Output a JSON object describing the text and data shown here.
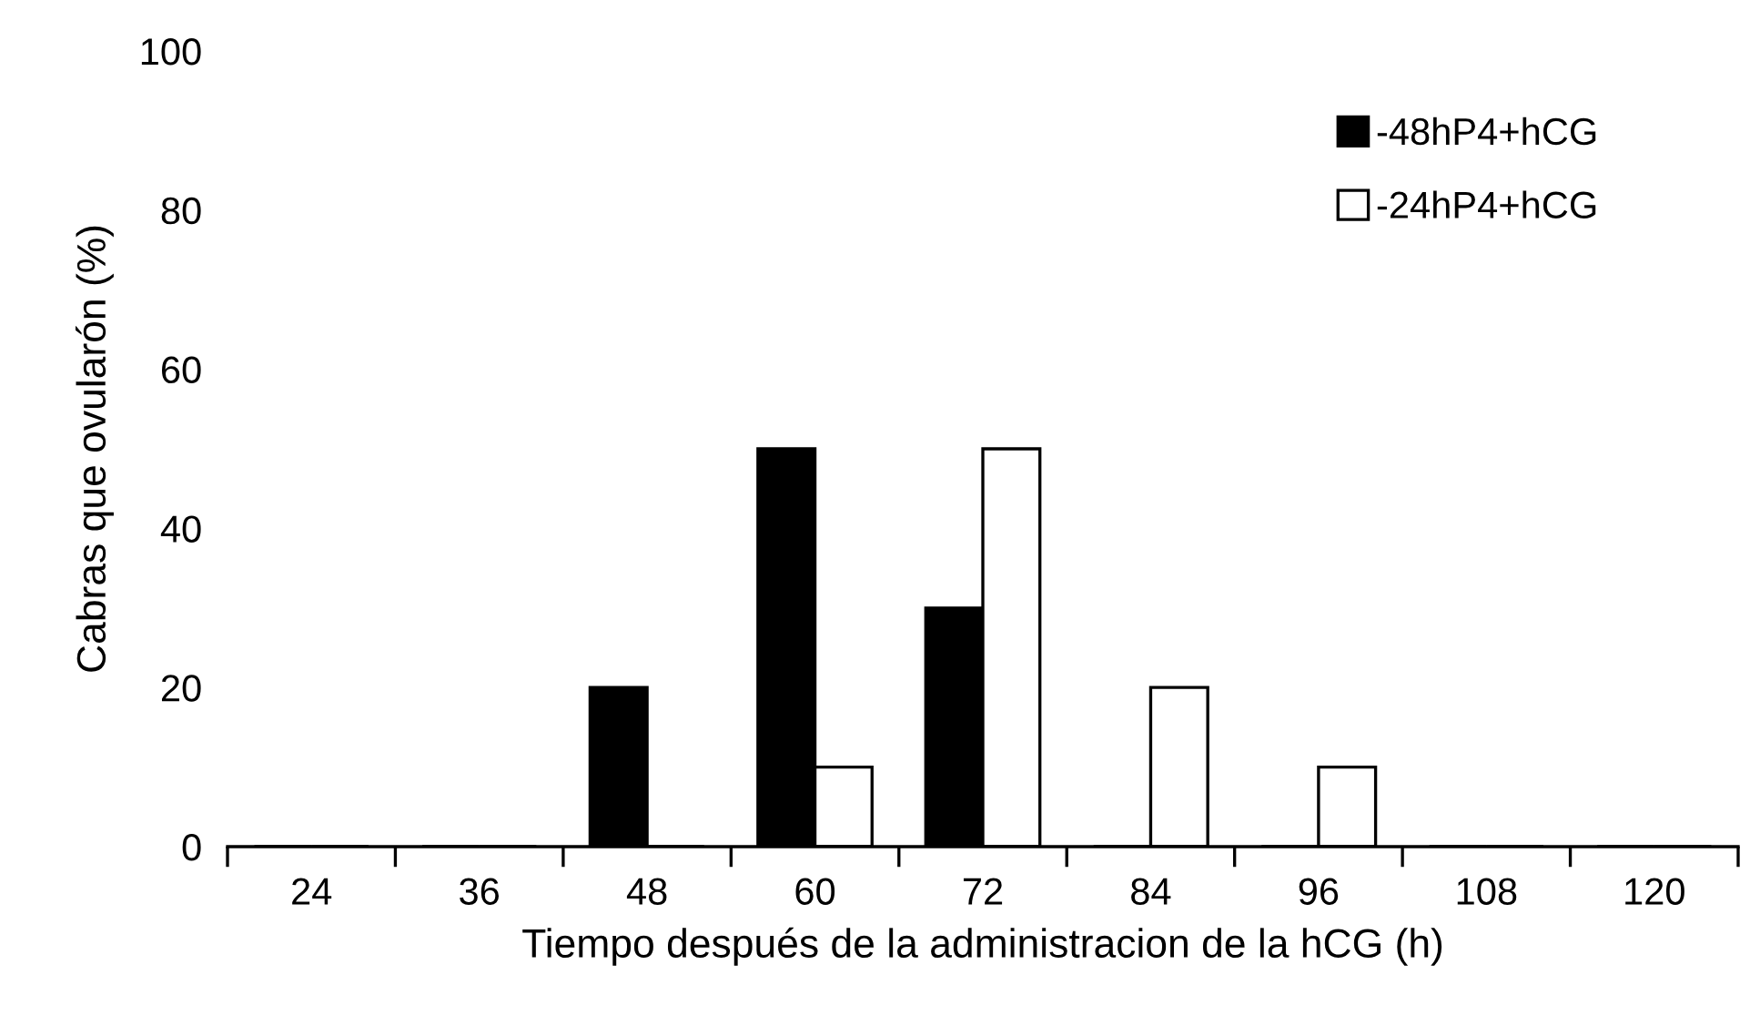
{
  "chart_data": {
    "type": "bar",
    "xlabel": "Tiempo después de la administracion de la hCG (h)",
    "ylabel": "Cabras que ovularón (%)",
    "categories": [
      "24",
      "36",
      "48",
      "60",
      "72",
      "84",
      "96",
      "108",
      "120"
    ],
    "series": [
      {
        "name": "-48hP4+hCG",
        "color": "#000000",
        "values": [
          0,
          0,
          20,
          50,
          30,
          0,
          0,
          0,
          0
        ]
      },
      {
        "name": "-24hP4+hCG",
        "color": "#ffffff",
        "values": [
          0,
          0,
          0,
          10,
          50,
          20,
          10,
          0,
          0
        ]
      }
    ],
    "ylim": [
      0,
      100
    ],
    "yticks": [
      0,
      20,
      40,
      60,
      80,
      100
    ],
    "grid": false,
    "legend": "top right"
  }
}
